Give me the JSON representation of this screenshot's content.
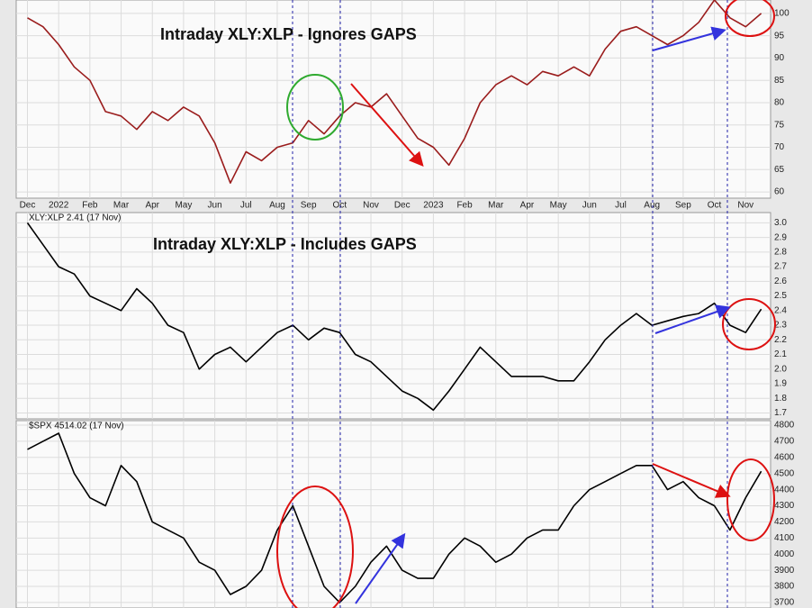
{
  "chart_data": [
    {
      "type": "line",
      "title": "Intraday XLY:XLP - Ignores GAPS",
      "x": [
        0,
        0.5,
        1,
        1.5,
        2,
        2.5,
        3,
        3.5,
        4,
        4.5,
        5,
        5.5,
        6,
        6.5,
        7,
        7.5,
        8,
        8.5,
        9,
        9.5,
        10,
        10.5,
        11,
        11.5,
        12,
        12.5,
        13,
        13.5,
        14,
        14.5,
        15,
        15.5,
        16,
        16.5,
        17,
        17.5,
        18,
        18.5,
        19,
        19.5,
        20,
        20.5,
        21,
        21.5,
        22,
        22.5,
        23,
        23.5
      ],
      "series": [
        {
          "color": "#9a1c1c",
          "values": [
            99,
            97,
            93,
            88,
            85,
            78,
            77,
            74,
            78,
            76,
            79,
            77,
            71,
            62,
            69,
            67,
            70,
            71,
            76,
            73,
            77,
            80,
            79,
            82,
            77,
            72,
            70,
            66,
            72,
            80,
            84,
            86,
            84,
            87,
            86,
            88,
            86,
            92,
            96,
            97,
            95,
            93,
            95,
            98,
            103,
            99,
            97,
            100
          ]
        }
      ],
      "xlim": [
        -0.36,
        23.8
      ],
      "xticks": [
        {
          "value": 0,
          "label": "Dec"
        },
        {
          "value": 1,
          "label": "2022"
        },
        {
          "value": 2,
          "label": "Feb"
        },
        {
          "value": 3,
          "label": "Mar"
        },
        {
          "value": 4,
          "label": "Apr"
        },
        {
          "value": 5,
          "label": "May"
        },
        {
          "value": 6,
          "label": "Jun"
        },
        {
          "value": 7,
          "label": "Jul"
        },
        {
          "value": 8,
          "label": "Aug"
        },
        {
          "value": 9,
          "label": "Sep"
        },
        {
          "value": 10,
          "label": "Oct"
        },
        {
          "value": 11,
          "label": "Nov"
        },
        {
          "value": 12,
          "label": "Dec"
        },
        {
          "value": 13,
          "label": "2023"
        },
        {
          "value": 14,
          "label": "Feb"
        },
        {
          "value": 15,
          "label": "Mar"
        },
        {
          "value": 16,
          "label": "Apr"
        },
        {
          "value": 17,
          "label": "May"
        },
        {
          "value": 18,
          "label": "Jun"
        },
        {
          "value": 19,
          "label": "Jul"
        },
        {
          "value": 20,
          "label": "Aug"
        },
        {
          "value": 21,
          "label": "Sep"
        },
        {
          "value": 22,
          "label": "Oct"
        },
        {
          "value": 23,
          "label": "Nov"
        }
      ],
      "ylim": [
        58.6,
        103
      ],
      "yticks": [
        60,
        65,
        70,
        75,
        80,
        85,
        90,
        95,
        100
      ],
      "grid": true
    },
    {
      "type": "line",
      "title": "Intraday XLY:XLP - Includes GAPS",
      "x": [
        0,
        0.5,
        1,
        1.5,
        2,
        2.5,
        3,
        3.5,
        4,
        4.5,
        5,
        5.5,
        6,
        6.5,
        7,
        7.5,
        8,
        8.5,
        9,
        9.5,
        10,
        10.5,
        11,
        11.5,
        12,
        12.5,
        13,
        13.5,
        14,
        14.5,
        15,
        15.5,
        16,
        16.5,
        17,
        17.5,
        18,
        18.5,
        19,
        19.5,
        20,
        20.5,
        21,
        21.5,
        22,
        22.5,
        23,
        23.5
      ],
      "series": [
        {
          "name": "XLY:XLP 2.41 (17 Nov)",
          "color": "#000000",
          "values": [
            3.0,
            2.85,
            2.7,
            2.65,
            2.5,
            2.45,
            2.4,
            2.55,
            2.45,
            2.3,
            2.25,
            2.0,
            2.1,
            2.15,
            2.05,
            2.15,
            2.25,
            2.3,
            2.2,
            2.28,
            2.25,
            2.1,
            2.05,
            1.95,
            1.85,
            1.8,
            1.72,
            1.85,
            2.0,
            2.15,
            2.05,
            1.95,
            1.95,
            1.95,
            1.92,
            1.92,
            2.05,
            2.2,
            2.3,
            2.38,
            2.3,
            2.33,
            2.36,
            2.38,
            2.45,
            2.3,
            2.25,
            2.41
          ]
        }
      ],
      "xlim": [
        -0.36,
        23.8
      ],
      "ylim": [
        1.66,
        3.07
      ],
      "yticks": [
        1.7,
        1.8,
        1.9,
        {
          "value": 2.0,
          "label": "2.0"
        },
        2.1,
        2.2,
        2.3,
        2.4,
        2.5,
        2.6,
        2.7,
        2.8,
        2.9,
        {
          "value": 3.0,
          "label": "3.0"
        }
      ],
      "grid": true
    },
    {
      "type": "line",
      "x": [
        0,
        0.5,
        1,
        1.5,
        2,
        2.5,
        3,
        3.5,
        4,
        4.5,
        5,
        5.5,
        6,
        6.5,
        7,
        7.5,
        8,
        8.5,
        9,
        9.5,
        10,
        10.5,
        11,
        11.5,
        12,
        12.5,
        13,
        13.5,
        14,
        14.5,
        15,
        15.5,
        16,
        16.5,
        17,
        17.5,
        18,
        18.5,
        19,
        19.5,
        20,
        20.5,
        21,
        21.5,
        22,
        22.5,
        23,
        23.5
      ],
      "series": [
        {
          "name": "$SPX 4514.02 (17 Nov)",
          "color": "#000000",
          "values": [
            4650,
            4700,
            4750,
            4500,
            4350,
            4300,
            4550,
            4450,
            4200,
            4150,
            4100,
            3950,
            3900,
            3750,
            3800,
            3900,
            4150,
            4300,
            4050,
            3800,
            3700,
            3800,
            3950,
            4050,
            3900,
            3850,
            3850,
            4000,
            4100,
            4050,
            3950,
            4000,
            4100,
            4150,
            4150,
            4300,
            4400,
            4450,
            4500,
            4550,
            4550,
            4400,
            4450,
            4350,
            4300,
            4150,
            4350,
            4514
          ]
        }
      ],
      "xlim": [
        -0.36,
        23.8
      ],
      "ylim": [
        3666,
        4828
      ],
      "yticks": [
        3700,
        3800,
        3900,
        4000,
        4100,
        4200,
        4300,
        4400,
        4500,
        4600,
        4700,
        4800
      ],
      "grid": true
    }
  ]
}
